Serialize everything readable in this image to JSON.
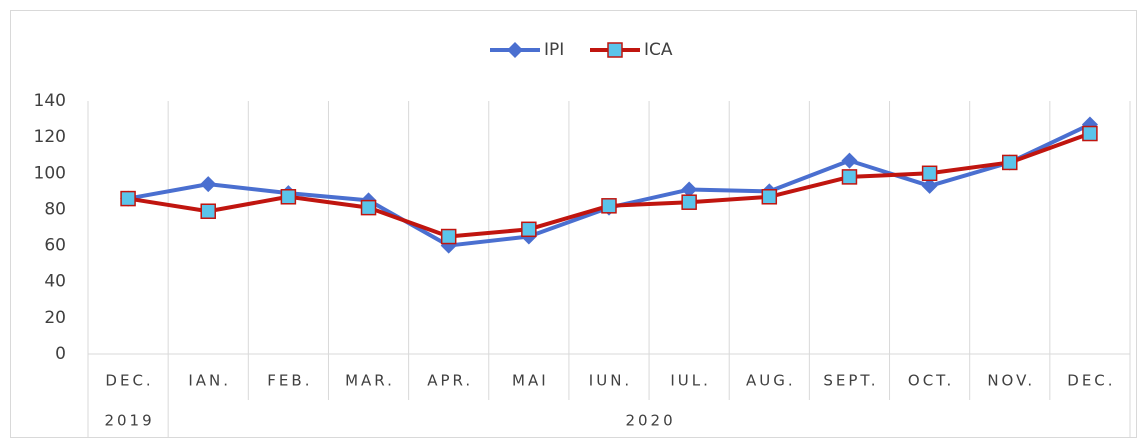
{
  "chart_data": {
    "type": "line",
    "categories": [
      "DEC.",
      "IAN.",
      "FEB.",
      "MAR.",
      "APR.",
      "MAI",
      "IUN.",
      "IUL.",
      "AUG.",
      "SEPT.",
      "OCT.",
      "NOV.",
      "DEC."
    ],
    "groups": [
      {
        "name": "2019",
        "size": 1
      },
      {
        "name": "2020",
        "size": 12
      }
    ],
    "series": [
      {
        "name": "IPI",
        "color": "#4a6fd0",
        "marker": "diamond",
        "values": [
          86,
          94,
          89,
          85,
          60,
          65,
          81,
          91,
          90,
          107,
          93,
          106,
          127
        ]
      },
      {
        "name": "ICA",
        "color": "#c0150f",
        "marker": "square",
        "marker_fill": "#5bc4ea",
        "values": [
          86,
          79,
          87,
          81,
          65,
          69,
          82,
          84,
          87,
          98,
          100,
          106,
          122
        ]
      }
    ],
    "ylim": [
      0,
      140
    ],
    "yticks": [
      0,
      20,
      40,
      60,
      80,
      100,
      120,
      140
    ],
    "legend": "top"
  }
}
